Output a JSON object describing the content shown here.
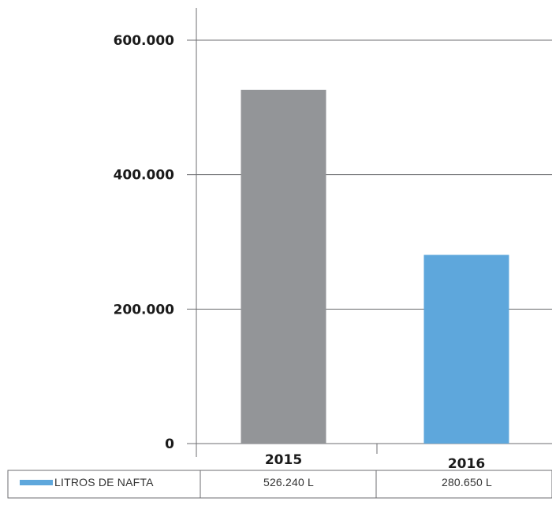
{
  "chart_data": {
    "type": "bar",
    "categories": [
      "2015",
      "2016"
    ],
    "series": [
      {
        "name": "LITROS DE NAFTA",
        "values": [
          526240,
          280650
        ],
        "value_labels": [
          "526.240 L",
          "280.650 L"
        ]
      }
    ],
    "bar_colors": [
      "#939598",
      "#5ea7dc"
    ],
    "legend_color": "#5ea7dc",
    "yticks": [
      0,
      200000,
      400000,
      600000
    ],
    "ytick_labels": [
      "0",
      "200.000",
      "400.000",
      "600.000"
    ],
    "ylim": [
      0,
      600000
    ],
    "grid": true,
    "legend": "bottom-table",
    "title": "",
    "xlabel": "",
    "ylabel": ""
  }
}
